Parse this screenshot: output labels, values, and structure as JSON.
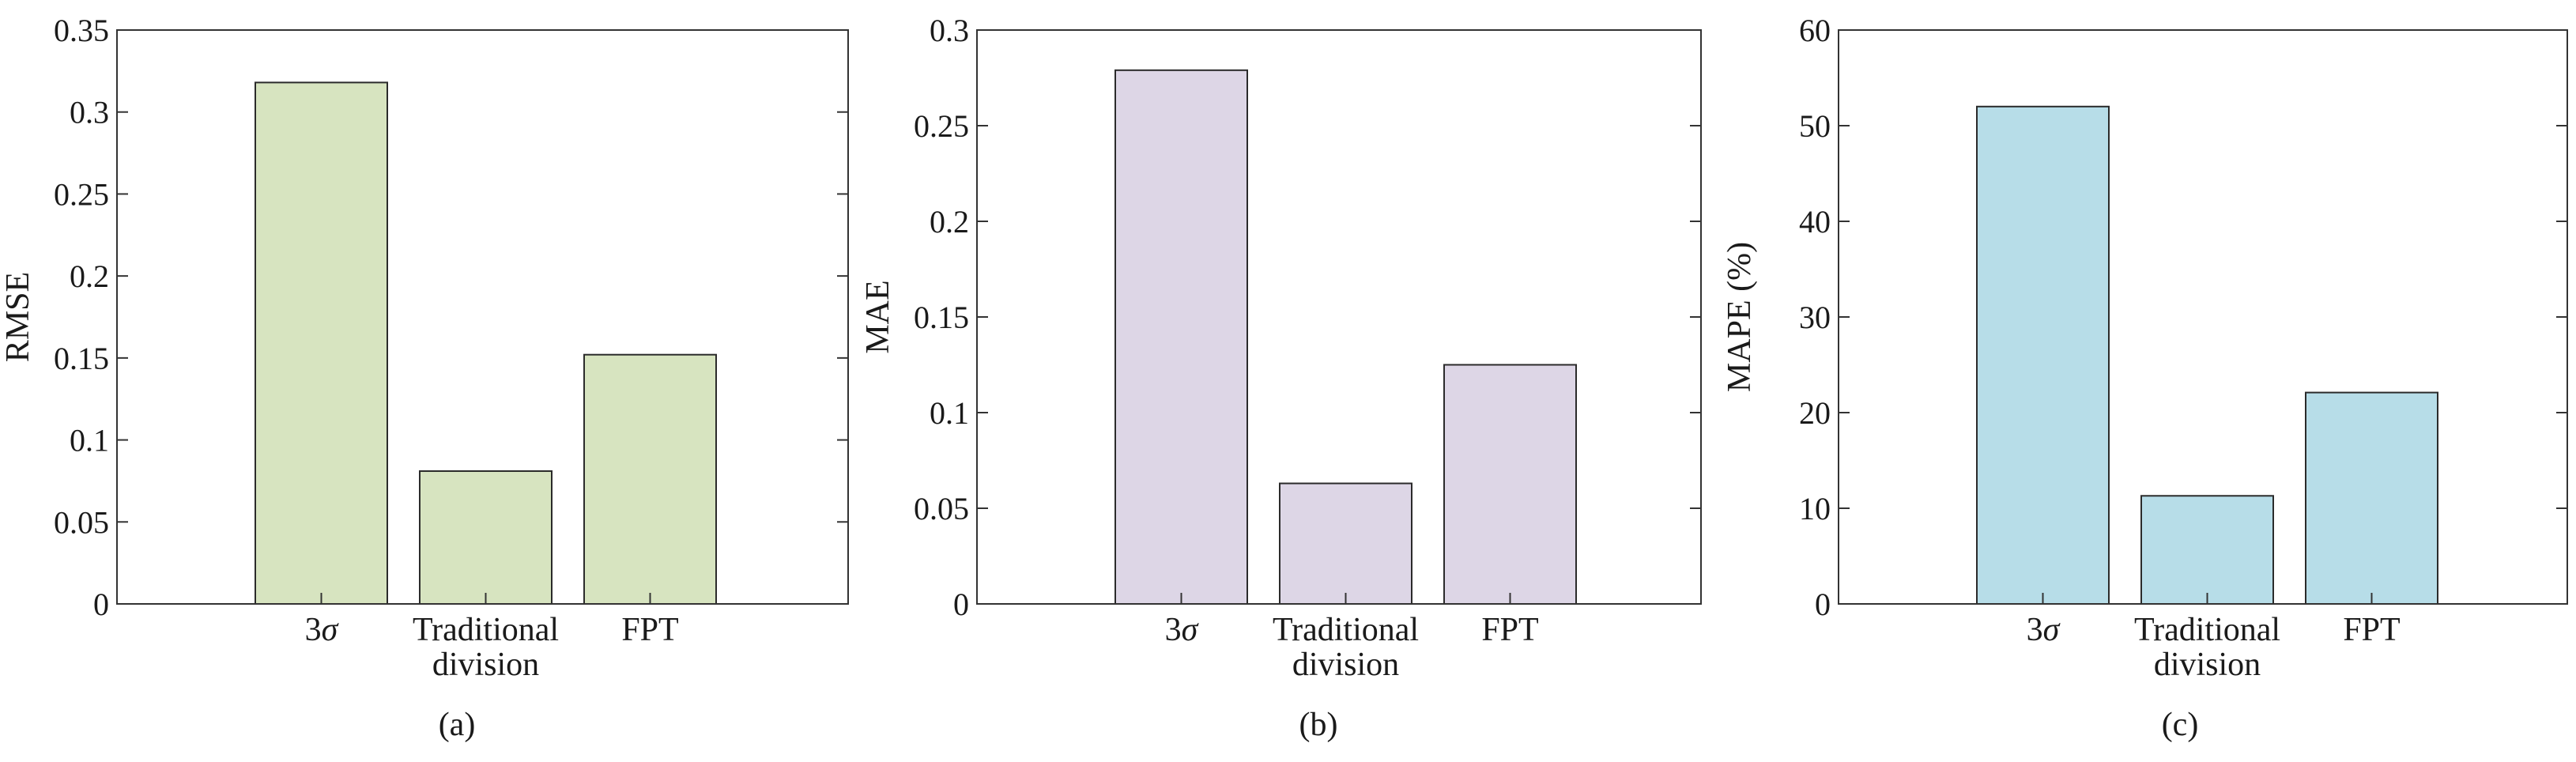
{
  "chart_data": [
    {
      "type": "bar",
      "caption": "(a)",
      "ylabel": "RMSE",
      "xlabel": "",
      "ylim": [
        0,
        0.35
      ],
      "yticks": [
        0,
        0.05,
        0.1,
        0.15,
        0.2,
        0.25,
        0.3,
        0.35
      ],
      "ytick_labels": [
        "0",
        "0.05",
        "0.1",
        "0.15",
        "0.2",
        "0.25",
        "0.3",
        "0.35"
      ],
      "categories": [
        "3σ",
        "Traditional division",
        "FPT"
      ],
      "category_lines": [
        [
          "3σ"
        ],
        [
          "Traditional",
          "division"
        ],
        [
          "FPT"
        ]
      ],
      "values": [
        0.318,
        0.081,
        0.152
      ],
      "bar_color": "#d7e4c0",
      "grid": false
    },
    {
      "type": "bar",
      "caption": "(b)",
      "ylabel": "MAE",
      "xlabel": "",
      "ylim": [
        0,
        0.3
      ],
      "yticks": [
        0,
        0.05,
        0.1,
        0.15,
        0.2,
        0.25,
        0.3
      ],
      "ytick_labels": [
        "0",
        "0.05",
        "0.1",
        "0.15",
        "0.2",
        "0.25",
        "0.3"
      ],
      "categories": [
        "3σ",
        "Traditional division",
        "FPT"
      ],
      "category_lines": [
        [
          "3σ"
        ],
        [
          "Traditional",
          "division"
        ],
        [
          "FPT"
        ]
      ],
      "values": [
        0.279,
        0.063,
        0.125
      ],
      "bar_color": "#ddd6e6",
      "grid": false
    },
    {
      "type": "bar",
      "caption": "(c)",
      "ylabel": "MAPE (%)",
      "xlabel": "",
      "ylim": [
        0,
        60
      ],
      "yticks": [
        0,
        10,
        20,
        30,
        40,
        50,
        60
      ],
      "ytick_labels": [
        "0",
        "10",
        "20",
        "30",
        "40",
        "50",
        "60"
      ],
      "categories": [
        "3σ",
        "Traditional division",
        "FPT"
      ],
      "category_lines": [
        [
          "3σ"
        ],
        [
          "Traditional",
          "division"
        ],
        [
          "FPT"
        ]
      ],
      "values": [
        52.0,
        11.3,
        22.1
      ],
      "bar_color": "#b7dde8",
      "grid": false
    }
  ]
}
